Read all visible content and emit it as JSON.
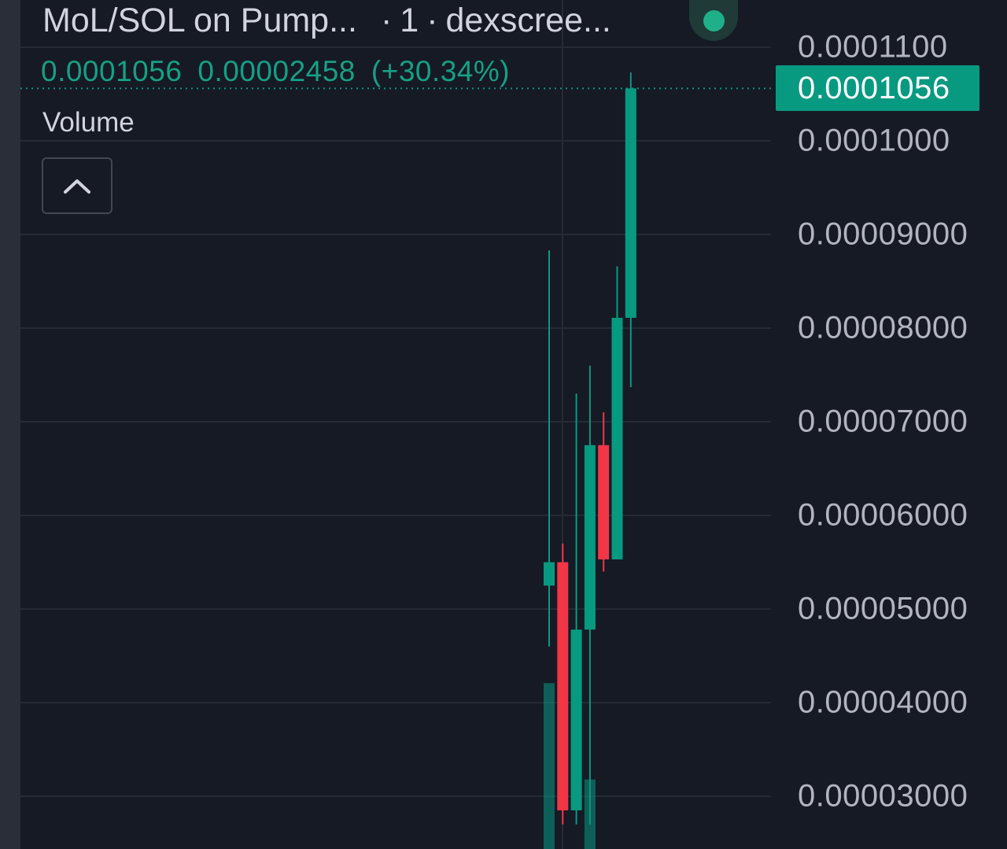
{
  "header": {
    "symbol_title": "MoL/SOL on Pump...",
    "separator": "·",
    "interval": "1",
    "source": "dexscree..."
  },
  "price_row": {
    "last_price": "0.0001056",
    "change": "0.00002458",
    "change_pct": "(+30.34%)"
  },
  "volume_label": "Volume",
  "collapse_icon": "chevron-up-icon",
  "price_axis": {
    "ticks": [
      "0.0001100",
      "0.0001000",
      "0.00009000",
      "0.00008000",
      "0.00007000",
      "0.00006000",
      "0.00005000",
      "0.00004000",
      "0.00003000"
    ],
    "last_price_label": "0.0001056"
  },
  "colors": {
    "background": "#161a25",
    "up": "#089981",
    "down": "#f23645",
    "grid": "#262a35",
    "live_indicator": "#1fb08a"
  },
  "chart_data": {
    "type": "candlestick",
    "y_unit": "SOL",
    "ylim": [
      2.7e-05,
      0.0001125
    ],
    "last_price": 0.0001056,
    "candles": [
      {
        "open": 5.25e-05,
        "high": 8.83e-05,
        "low": 4.6e-05,
        "close": 5.5e-05
      },
      {
        "open": 5.5e-05,
        "high": 5.7e-05,
        "low": 2.7e-05,
        "close": 2.85e-05
      },
      {
        "open": 2.85e-05,
        "high": 7.3e-05,
        "low": 2.7e-05,
        "close": 4.78e-05
      },
      {
        "open": 4.78e-05,
        "high": 7.6e-05,
        "low": 2.7e-05,
        "close": 6.75e-05
      },
      {
        "open": 6.75e-05,
        "high": 7.1e-05,
        "low": 5.4e-05,
        "close": 5.53e-05
      },
      {
        "open": 5.53e-05,
        "high": 8.66e-05,
        "low": 5.53e-05,
        "close": 8.11e-05
      },
      {
        "open": 8.11e-05,
        "high": 0.0001073,
        "low": 7.37e-05,
        "close": 0.0001056
      }
    ],
    "volume": [
      0.62,
      0.0,
      0.0,
      0.26,
      0.0,
      0.0,
      0.0
    ]
  }
}
